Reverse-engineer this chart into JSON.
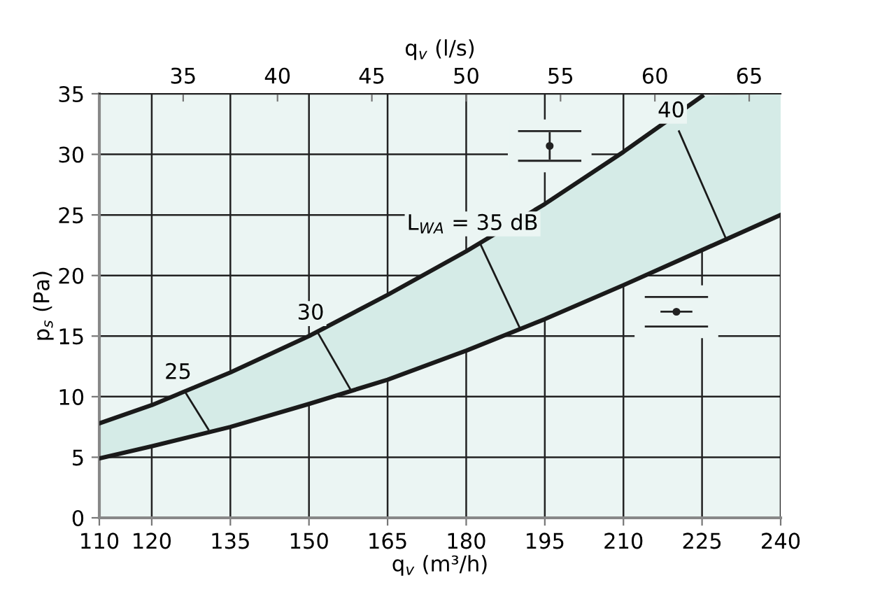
{
  "chart_data": {
    "type": "line",
    "xlabel": "q$_{v}$ (m³/h)",
    "x2label": "q$_{v}$ (l/s)",
    "ylabel": "p$_{s}$ (Pa)",
    "x": [
      110,
      120,
      135,
      150,
      165,
      180,
      195,
      210,
      225,
      240
    ],
    "series": [
      {
        "color": "#1a1a1a",
        "values": [
          4.9,
          5.9,
          7.5,
          9.4,
          11.4,
          13.8,
          16.4,
          19.2,
          22.1,
          25.0
        ]
      },
      {
        "color": "#1a1a1a",
        "values": [
          7.8,
          9.3,
          12.0,
          15.0,
          18.4,
          22.0,
          25.9,
          30.2,
          34.8,
          null
        ],
        "lower": [
          4.9,
          5.9,
          7.5,
          9.4,
          11.4,
          13.8,
          16.4,
          19.2,
          22.1,
          25.0
        ],
        "upper": [
          7.8,
          9.3,
          12.0,
          15.0,
          18.4,
          22.0,
          25.9,
          30.2,
          34.8,
          35
        ]
      },
      {
        "color": "#1a1a1a",
        "x": [
          126.5,
          130.8
        ],
        "values": [
          10.3,
          7.3
        ]
      },
      {
        "color": "#1a1a1a",
        "x": [
          151.8,
          157.9
        ],
        "values": [
          15.2,
          10.6
        ]
      },
      {
        "color": "#1a1a1a",
        "x": [
          182.7,
          190.3
        ],
        "values": [
          22.6,
          15.6
        ]
      },
      {
        "color": "#1a1a1a",
        "x": [
          220.6,
          229.7
        ],
        "values": [
          31.9,
          22.9
        ]
      }
    ],
    "annotations": [
      {
        "text": "25",
        "x": 126.5,
        "y": 10.3
      },
      {
        "text": "30",
        "x": 151.8,
        "y": 15.2
      },
      {
        "text": "L$_{WA}$ = 35 dB",
        "x": 182.7,
        "y": 22.6
      },
      {
        "text": "40",
        "x": 220.6,
        "y": 31.9
      }
    ],
    "xlim": [
      110,
      240
    ],
    "xticks": [
      110,
      120,
      135,
      150,
      165,
      180,
      195,
      210,
      225,
      240
    ],
    "x2lim": [
      30.556,
      66.667
    ],
    "x2ticks": [
      35,
      40,
      45,
      50,
      55,
      60,
      65
    ],
    "ylim": [
      0,
      35
    ],
    "yticks": [
      0,
      5,
      10,
      15,
      20,
      25,
      30,
      35
    ],
    "grid": true,
    "legend": false
  }
}
